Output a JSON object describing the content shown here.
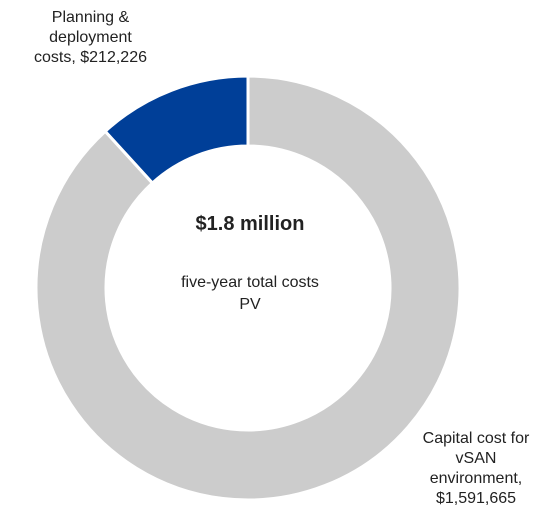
{
  "chart_data": {
    "type": "donut",
    "categories": [
      "Planning & deployment costs,",
      "Capital cost for vSAN environment,"
    ],
    "values": [
      212226,
      1591665
    ],
    "value_labels": [
      "$212,226",
      "$1,591,665"
    ],
    "colors": [
      "#003f98",
      "#cccccc"
    ],
    "center_title": "$1.8 million",
    "center_subtitle": "five-year total costs PV"
  }
}
